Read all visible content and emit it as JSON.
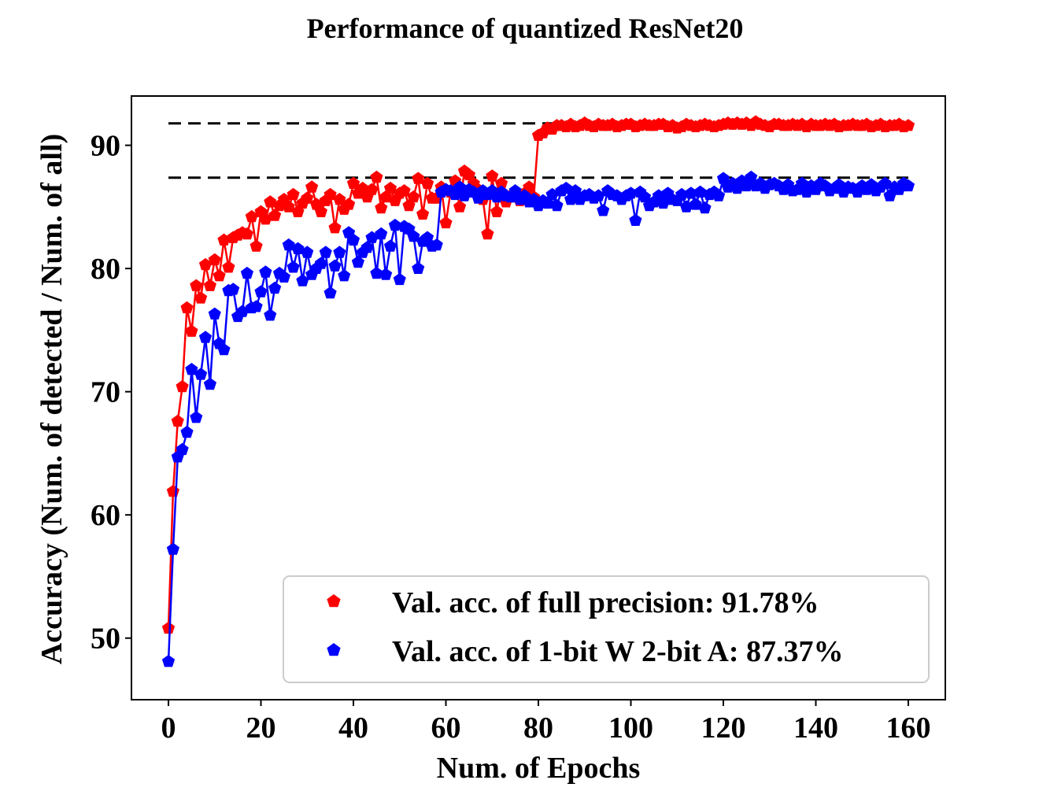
{
  "chart_data": {
    "type": "line",
    "title": "Performance of quantized ResNet20",
    "xlabel": "Num. of Epochs",
    "ylabel": "Accuracy (Num. of detected / Num. of all)",
    "xlim": [
      -8,
      168
    ],
    "ylim": [
      45,
      94
    ],
    "xticks": [
      0,
      20,
      40,
      60,
      80,
      100,
      120,
      140,
      160
    ],
    "yticks": [
      50,
      60,
      70,
      80,
      90
    ],
    "xtick_labels": [
      "0",
      "20",
      "40",
      "60",
      "80",
      "100",
      "120",
      "140",
      "160"
    ],
    "ytick_labels": [
      "50",
      "60",
      "70",
      "80",
      "90"
    ],
    "grid": false,
    "legend_position": "lower-right",
    "reference_lines": [
      {
        "y": 91.78,
        "x_range": [
          0,
          160
        ],
        "color": "#000000",
        "style": "dashed"
      },
      {
        "y": 87.37,
        "x_range": [
          0,
          160
        ],
        "color": "#000000",
        "style": "dashed"
      }
    ],
    "x": [
      0,
      1,
      2,
      3,
      4,
      5,
      6,
      7,
      8,
      9,
      10,
      11,
      12,
      13,
      14,
      15,
      16,
      17,
      18,
      19,
      20,
      21,
      22,
      23,
      24,
      25,
      26,
      27,
      28,
      29,
      30,
      31,
      32,
      33,
      34,
      35,
      36,
      37,
      38,
      39,
      40,
      41,
      42,
      43,
      44,
      45,
      46,
      47,
      48,
      49,
      50,
      51,
      52,
      53,
      54,
      55,
      56,
      57,
      58,
      59,
      60,
      61,
      62,
      63,
      64,
      65,
      66,
      67,
      68,
      69,
      70,
      71,
      72,
      73,
      74,
      75,
      76,
      77,
      78,
      79,
      80,
      81,
      82,
      83,
      84,
      85,
      86,
      87,
      88,
      89,
      90,
      91,
      92,
      93,
      94,
      95,
      96,
      97,
      98,
      99,
      100,
      101,
      102,
      103,
      104,
      105,
      106,
      107,
      108,
      109,
      110,
      111,
      112,
      113,
      114,
      115,
      116,
      117,
      118,
      119,
      120,
      121,
      122,
      123,
      124,
      125,
      126,
      127,
      128,
      129,
      130,
      131,
      132,
      133,
      134,
      135,
      136,
      137,
      138,
      139,
      140,
      141,
      142,
      143,
      144,
      145,
      146,
      147,
      148,
      149,
      150,
      151,
      152,
      153,
      154,
      155,
      156,
      157,
      158,
      159,
      160
    ],
    "series": [
      {
        "name": "Val. acc. of full precision: 91.78%",
        "color": "#ff0000",
        "marker": "pentagon",
        "values": [
          50.8,
          61.9,
          67.6,
          70.4,
          76.8,
          74.9,
          78.6,
          77.6,
          80.3,
          78.6,
          80.7,
          79.4,
          82.3,
          80.1,
          82.5,
          82.7,
          82.9,
          82.8,
          84.2,
          81.8,
          84.6,
          84.0,
          85.4,
          84.3,
          85.1,
          85.6,
          85.0,
          86.0,
          84.6,
          85.3,
          85.7,
          86.6,
          85.2,
          84.6,
          85.5,
          86.0,
          83.3,
          85.6,
          84.8,
          85.2,
          86.9,
          86.1,
          86.5,
          85.8,
          86.4,
          87.4,
          84.9,
          85.8,
          86.5,
          85.5,
          86.1,
          86.3,
          85.1,
          85.8,
          87.3,
          84.4,
          86.9,
          85.7,
          85.7,
          86.6,
          83.7,
          86.2,
          87.1,
          85.0,
          87.9,
          87.6,
          86.9,
          86.4,
          85.6,
          82.8,
          87.5,
          84.6,
          86.9,
          85.4,
          85.9,
          85.8,
          85.5,
          86.1,
          86.6,
          85.8,
          90.8,
          91.0,
          91.4,
          91.3,
          91.6,
          91.6,
          91.5,
          91.7,
          91.5,
          91.6,
          91.8,
          91.6,
          91.5,
          91.7,
          91.6,
          91.6,
          91.7,
          91.5,
          91.6,
          91.7,
          91.7,
          91.5,
          91.6,
          91.7,
          91.6,
          91.6,
          91.7,
          91.7,
          91.5,
          91.6,
          91.4,
          91.5,
          91.7,
          91.6,
          91.5,
          91.6,
          91.7,
          91.6,
          91.5,
          91.6,
          91.7,
          91.8,
          91.7,
          91.8,
          91.7,
          91.8,
          91.6,
          91.9,
          91.7,
          91.6,
          91.5,
          91.7,
          91.7,
          91.6,
          91.6,
          91.7,
          91.6,
          91.7,
          91.5,
          91.7,
          91.6,
          91.6,
          91.7,
          91.6,
          91.7,
          91.5,
          91.6,
          91.6,
          91.7,
          91.6,
          91.6,
          91.7,
          91.5,
          91.6,
          91.7,
          91.5,
          91.6,
          91.6,
          91.7,
          91.5,
          91.6
        ]
      },
      {
        "name": "Val. acc. of 1-bit W 2-bit A: 87.37%",
        "color": "#0000ff",
        "marker": "pentagon",
        "values": [
          48.1,
          57.2,
          64.7,
          65.3,
          66.7,
          71.8,
          67.9,
          71.4,
          74.4,
          70.6,
          76.3,
          73.9,
          73.4,
          78.2,
          78.3,
          76.1,
          76.5,
          79.6,
          76.8,
          76.9,
          78.1,
          79.7,
          76.2,
          78.4,
          79.6,
          79.3,
          81.9,
          80.1,
          81.6,
          79.0,
          81.3,
          79.5,
          80.0,
          80.4,
          81.3,
          78.0,
          80.2,
          81.3,
          79.4,
          82.9,
          82.3,
          80.5,
          81.3,
          81.7,
          82.5,
          79.6,
          82.8,
          79.5,
          81.8,
          83.5,
          79.1,
          83.4,
          83.2,
          82.6,
          80.0,
          82.2,
          82.5,
          81.8,
          81.9,
          86.2,
          86.4,
          86.3,
          86.0,
          86.6,
          85.9,
          86.4,
          86.2,
          85.7,
          86.3,
          86.0,
          86.3,
          85.8,
          86.2,
          85.9,
          85.8,
          86.3,
          85.6,
          85.9,
          85.4,
          85.6,
          85.1,
          85.5,
          85.3,
          86.0,
          85.1,
          86.3,
          86.5,
          85.6,
          86.3,
          85.6,
          85.9,
          86.0,
          85.7,
          85.9,
          84.7,
          86.3,
          86.0,
          85.9,
          85.6,
          85.9,
          86.1,
          83.9,
          86.2,
          85.8,
          85.1,
          85.4,
          85.9,
          85.3,
          86.1,
          85.6,
          85.5,
          86.0,
          85.0,
          86.1,
          85.2,
          86.2,
          84.9,
          86.0,
          86.2,
          85.9,
          87.3,
          86.6,
          86.9,
          86.5,
          87.1,
          86.7,
          87.4,
          86.7,
          86.9,
          86.5,
          86.8,
          86.9,
          86.7,
          86.4,
          86.8,
          86.3,
          86.4,
          86.9,
          86.2,
          86.7,
          86.4,
          86.9,
          86.7,
          86.3,
          86.5,
          86.8,
          86.2,
          86.6,
          86.5,
          86.2,
          86.7,
          86.4,
          86.8,
          86.3,
          86.6,
          86.9,
          85.9,
          86.6,
          86.4,
          86.9,
          86.7
        ]
      }
    ]
  }
}
